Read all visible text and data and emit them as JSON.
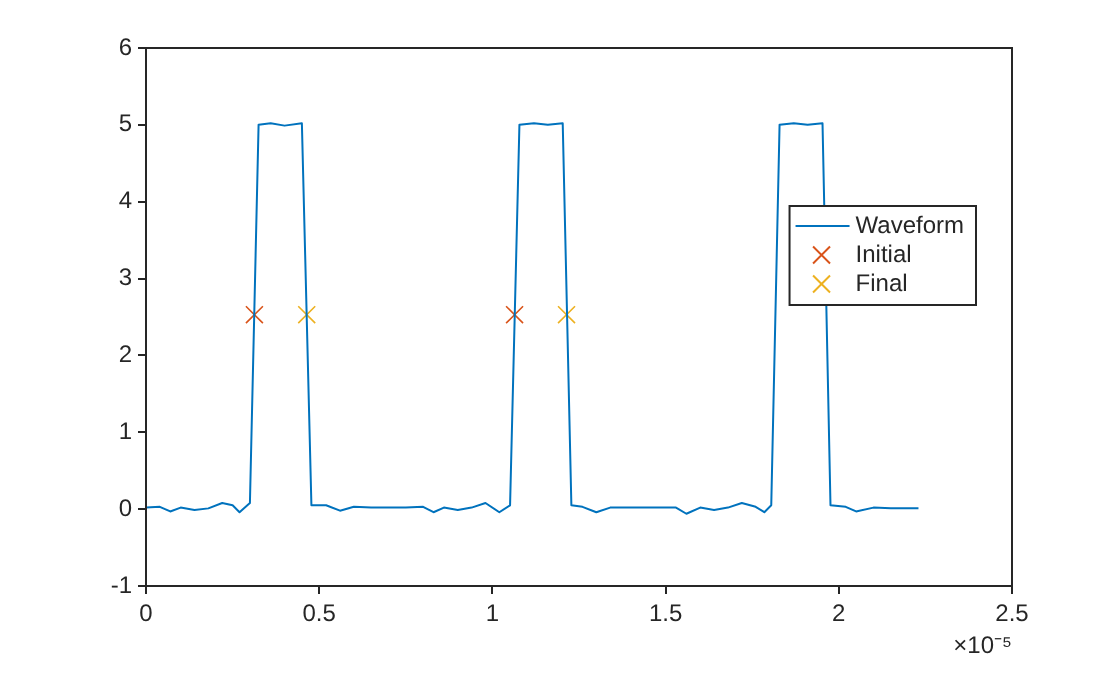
{
  "chart_data": {
    "type": "line",
    "xlim": [
      0,
      2.5
    ],
    "xticks": [
      0,
      0.5,
      1,
      1.5,
      2,
      2.5
    ],
    "ylim": [
      -1,
      6
    ],
    "yticks": [
      -1,
      0,
      1,
      2,
      3,
      4,
      5,
      6
    ],
    "grid": false,
    "legend": "right",
    "annotations": [
      "×10⁻⁵"
    ],
    "series": [
      {
        "name": "Waveform",
        "color": "#0072bd",
        "marker": "none",
        "line_style": "solid",
        "x": [
          0,
          0.04,
          0.07,
          0.1,
          0.14,
          0.18,
          0.22,
          0.25,
          0.27,
          0.3,
          0.325,
          0.36,
          0.4,
          0.45,
          0.4775,
          0.52,
          0.56,
          0.6,
          0.65,
          0.7,
          0.75,
          0.8,
          0.83,
          0.86,
          0.9,
          0.94,
          0.98,
          1.02,
          1.051,
          1.078,
          1.12,
          1.16,
          1.203,
          1.228,
          1.26,
          1.3,
          1.34,
          1.4,
          1.46,
          1.5,
          1.53,
          1.56,
          1.6,
          1.64,
          1.68,
          1.72,
          1.76,
          1.785,
          1.805,
          1.829,
          1.87,
          1.91,
          1.953,
          1.976,
          2.02,
          2.05,
          2.1,
          2.15,
          2.23
        ],
        "values": [
          0.02,
          0.03,
          -0.03,
          0.02,
          -0.01,
          0.01,
          0.08,
          0.05,
          -0.04,
          0.08,
          5.0,
          5.02,
          4.99,
          5.02,
          0.05,
          0.05,
          -0.02,
          0.03,
          0.02,
          0.02,
          0.02,
          0.03,
          -0.04,
          0.02,
          -0.01,
          0.02,
          0.08,
          -0.04,
          0.05,
          5.0,
          5.02,
          5.0,
          5.02,
          0.05,
          0.03,
          -0.04,
          0.02,
          0.02,
          0.02,
          0.02,
          0.02,
          -0.06,
          0.02,
          -0.01,
          0.02,
          0.08,
          0.03,
          -0.04,
          0.05,
          5.0,
          5.02,
          5.0,
          5.02,
          0.05,
          0.03,
          -0.03,
          0.02,
          0.01,
          0.01
        ]
      },
      {
        "name": "Initial",
        "type": "scatter",
        "color": "#d95319",
        "marker": "cross",
        "x": [
          0.313,
          1.064
        ],
        "values": [
          2.53,
          2.53
        ]
      },
      {
        "name": "Final",
        "type": "scatter",
        "color": "#edb120",
        "marker": "cross",
        "x": [
          0.464,
          1.214
        ],
        "values": [
          2.53,
          2.53
        ]
      }
    ]
  }
}
